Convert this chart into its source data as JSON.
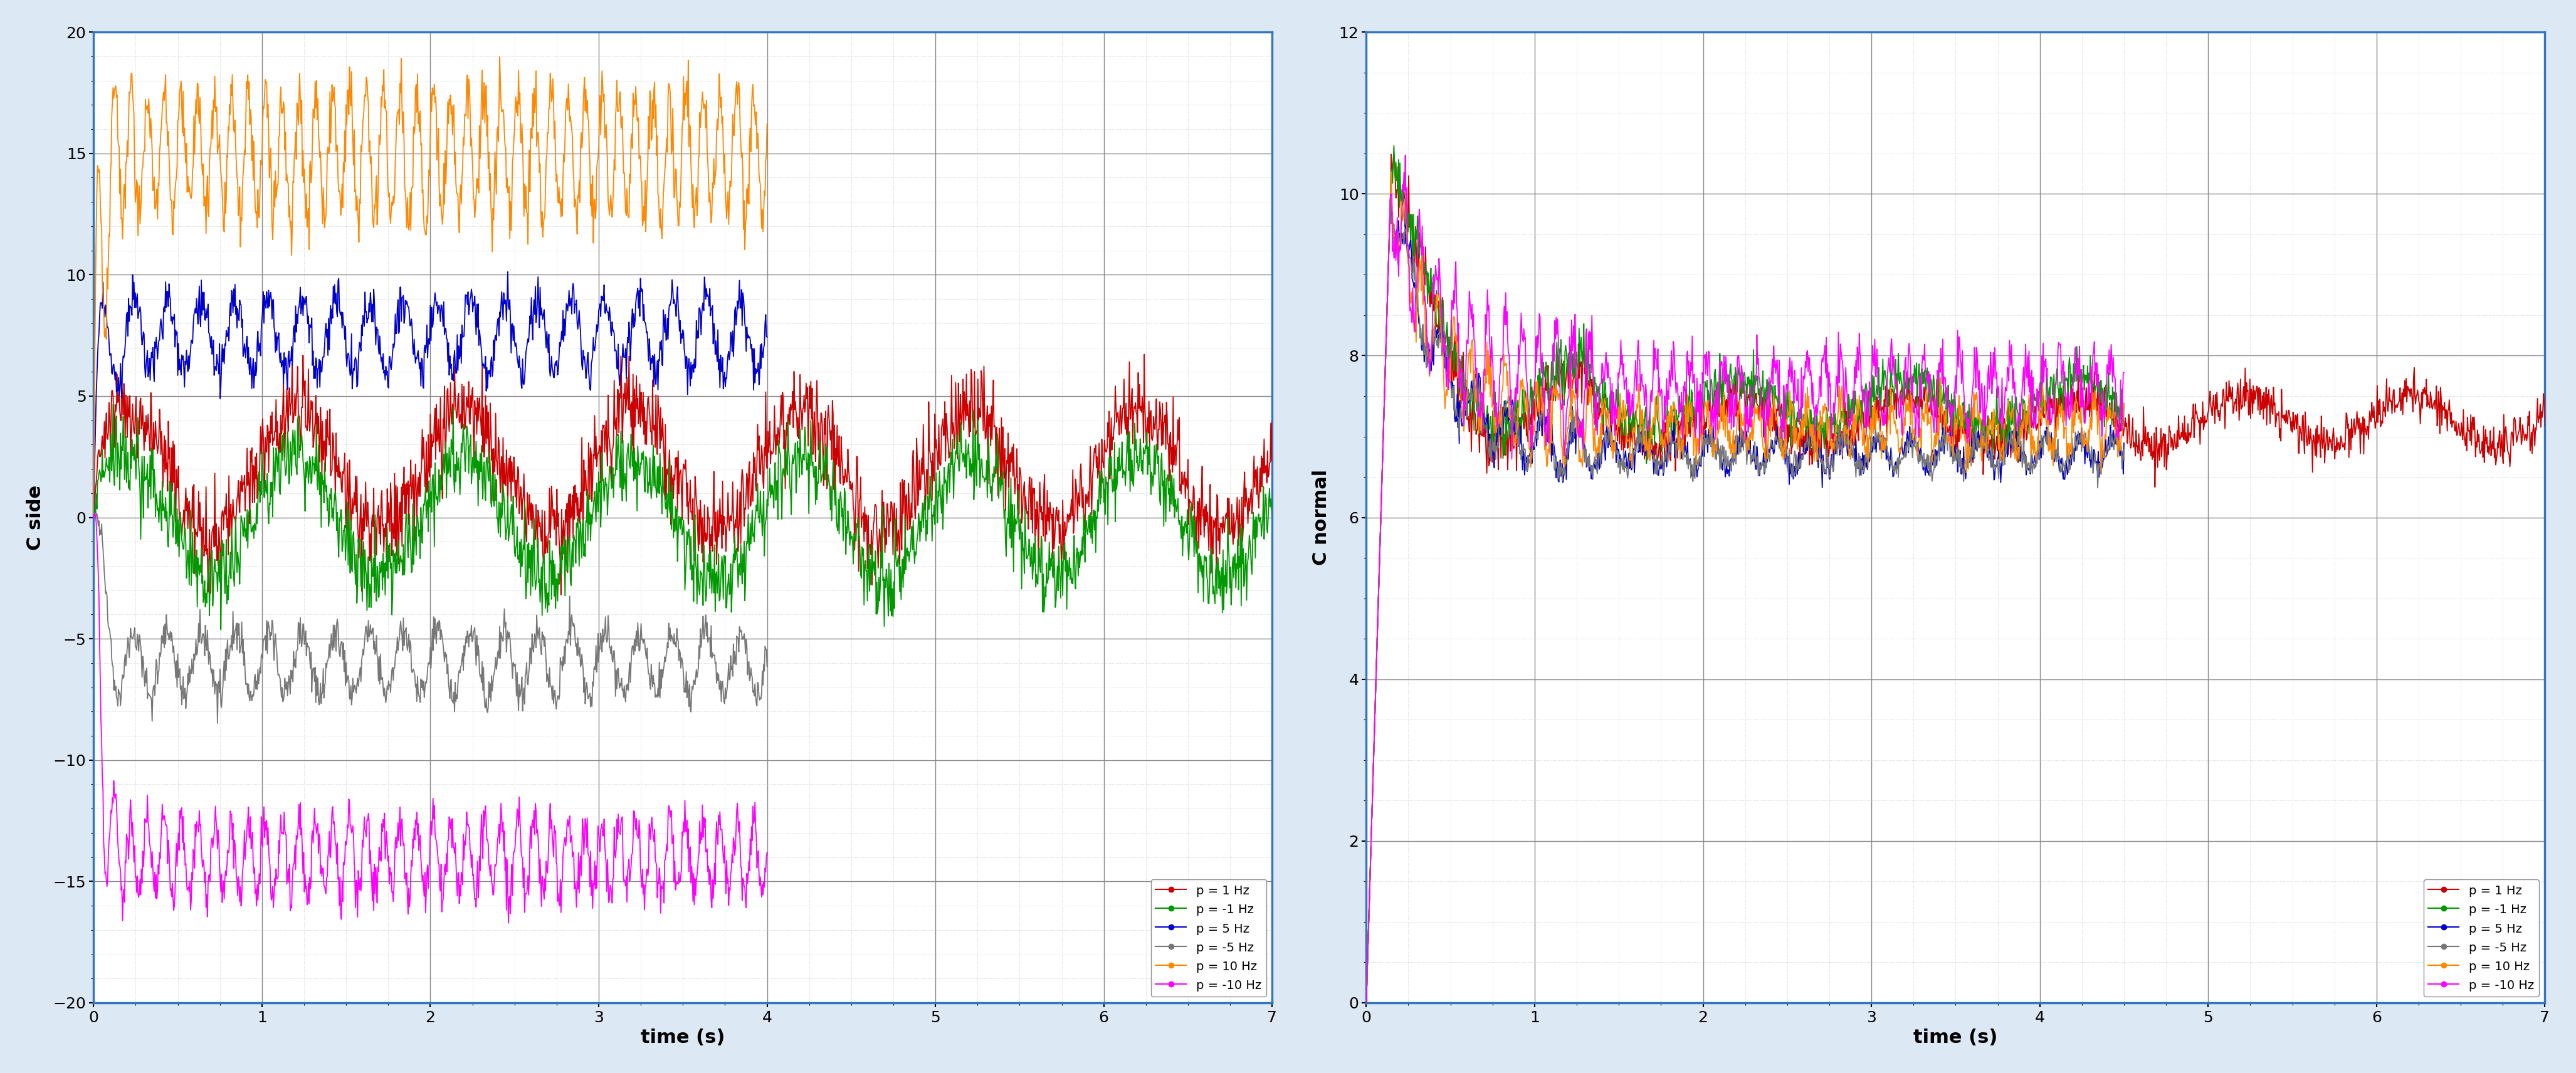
{
  "left_ylabel": "C side",
  "right_ylabel": "C normal",
  "xlabel": "time (s)",
  "xlim": [
    0,
    7
  ],
  "left_ylim": [
    -20,
    20
  ],
  "right_ylim": [
    0,
    12
  ],
  "left_yticks": [
    -20,
    -15,
    -10,
    -5,
    0,
    5,
    10,
    15,
    20
  ],
  "right_yticks": [
    0,
    2,
    4,
    6,
    8,
    10,
    12
  ],
  "xticks": [
    0,
    1,
    2,
    3,
    4,
    5,
    6,
    7
  ],
  "series": [
    {
      "label": "p = 1 Hz",
      "color": "#cc0000",
      "lw": 1.3
    },
    {
      "label": "p = -1 Hz",
      "color": "#009900",
      "lw": 1.3
    },
    {
      "label": "p = 5 Hz",
      "color": "#0000cc",
      "lw": 1.3
    },
    {
      "label": "p = -5 Hz",
      "color": "#777777",
      "lw": 1.3
    },
    {
      "label": "p = 10 Hz",
      "color": "#ff8800",
      "lw": 1.3
    },
    {
      "label": "p = -10 Hz",
      "color": "#ff00ff",
      "lw": 1.3
    }
  ],
  "left_offsets": [
    2.0,
    0.0,
    7.5,
    -6.0,
    15.0,
    -14.0
  ],
  "left_amps": [
    2.5,
    2.5,
    1.5,
    1.3,
    2.5,
    1.5
  ],
  "left_freqs": [
    1.0,
    1.0,
    5.0,
    5.0,
    10.0,
    10.0
  ],
  "left_noise": [
    0.9,
    0.8,
    0.5,
    0.4,
    0.7,
    0.5
  ],
  "left_end_t": [
    7.0,
    7.0,
    4.0,
    4.0,
    4.0,
    4.0
  ],
  "right_base": [
    7.2,
    7.4,
    6.8,
    6.8,
    7.1,
    7.6
  ],
  "right_noise": [
    0.3,
    0.3,
    0.18,
    0.18,
    0.25,
    0.35
  ],
  "right_end_t": [
    7.0,
    4.5,
    4.5,
    4.5,
    4.5,
    4.5
  ],
  "bg_color": "#ffffff",
  "fig_bg": "#dde8f5",
  "grid_major_color": "#888888",
  "grid_minor_color": "#bbbbbb",
  "border_color": "#3377bb"
}
